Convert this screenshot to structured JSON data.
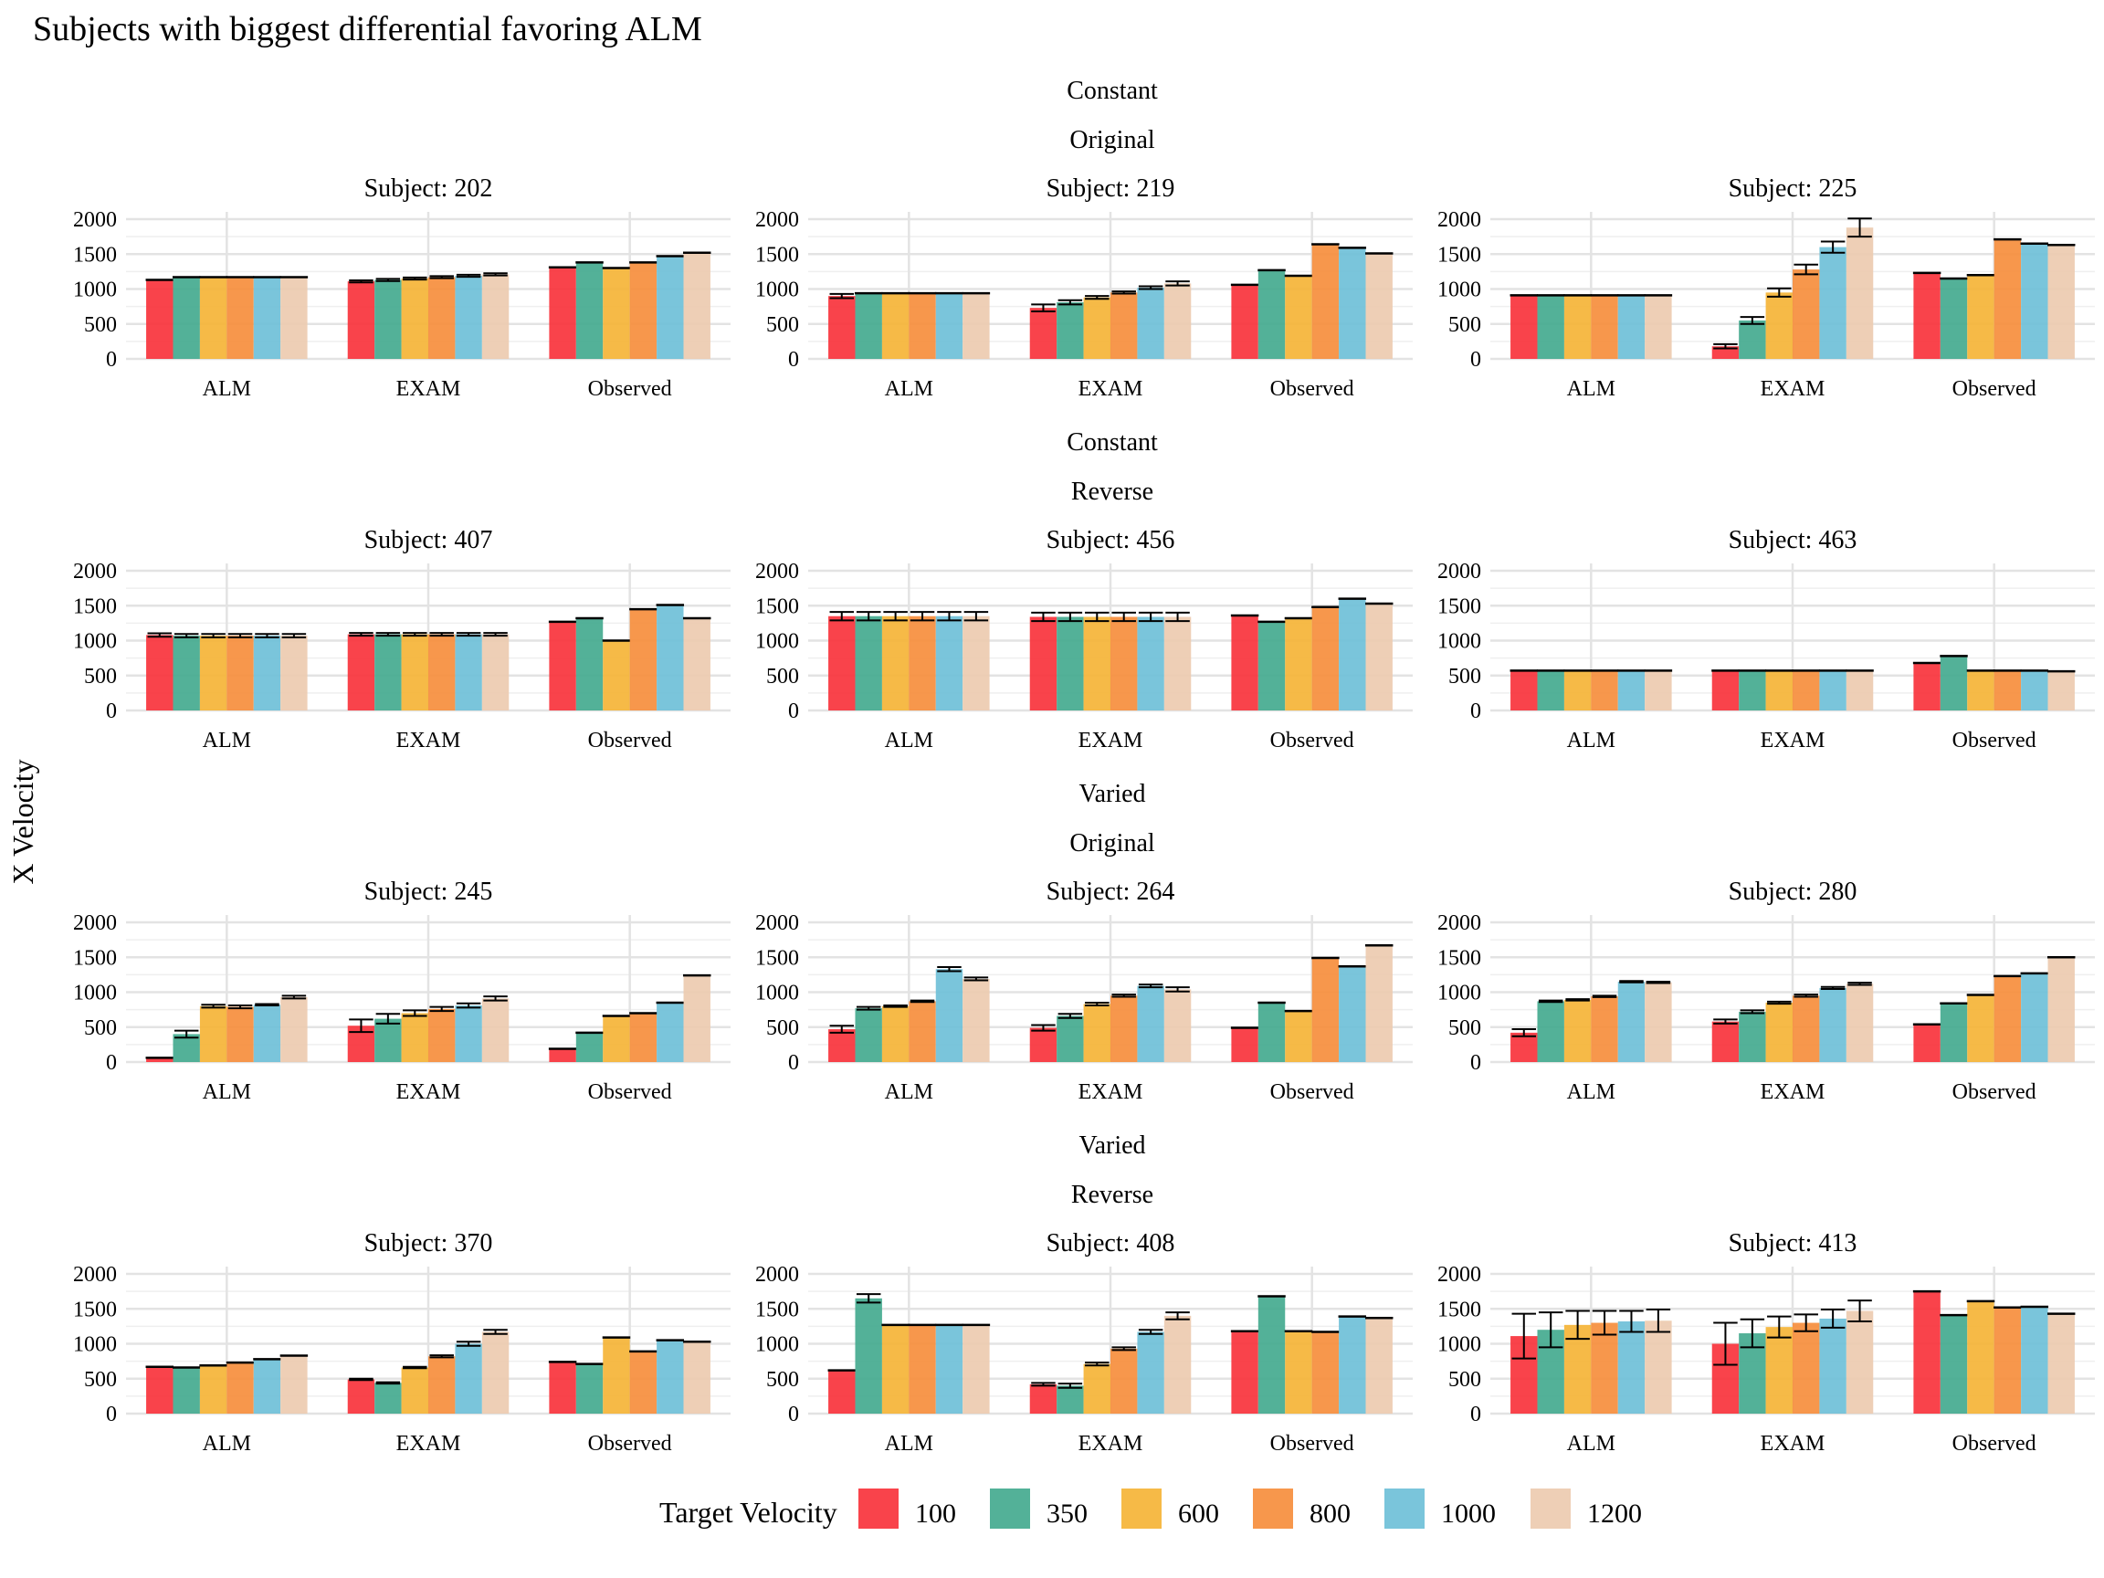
{
  "title": "Subjects with biggest differential favoring ALM",
  "ylabel": "X Velocity",
  "legend": {
    "title": "Target Velocity",
    "items": [
      {
        "label": "100",
        "color": "#F8333C"
      },
      {
        "label": "350",
        "color": "#44AA8F"
      },
      {
        "label": "600",
        "color": "#F5B437"
      },
      {
        "label": "800",
        "color": "#F68E3D"
      },
      {
        "label": "1000",
        "color": "#6FC0D8"
      },
      {
        "label": "1200",
        "color": "#EDCBB0"
      }
    ]
  },
  "groups": [
    {
      "line1": "Constant",
      "line2": "Original"
    },
    {
      "line1": "Constant",
      "line2": "Reverse"
    },
    {
      "line1": "Varied",
      "line2": "Original"
    },
    {
      "line1": "Varied",
      "line2": "Reverse"
    }
  ],
  "chart_data": {
    "type": "bar",
    "categories": [
      "ALM",
      "EXAM",
      "Observed"
    ],
    "series_names": [
      "100",
      "350",
      "600",
      "800",
      "1000",
      "1200"
    ],
    "ylim": [
      0,
      2000
    ],
    "yticks": [
      "0",
      "500",
      "1000",
      "1500",
      "2000"
    ],
    "panels": [
      {
        "label": "Subject: 202",
        "values": [
          [
            1130,
            1170,
            1170,
            1170,
            1170,
            1170
          ],
          [
            1110,
            1130,
            1150,
            1170,
            1190,
            1210
          ],
          [
            1310,
            1380,
            1300,
            1380,
            1470,
            1520
          ]
        ],
        "errors": [
          [
            0,
            0,
            0,
            0,
            0,
            0
          ],
          [
            15,
            15,
            15,
            15,
            15,
            15
          ],
          [
            0,
            0,
            0,
            0,
            0,
            0
          ]
        ]
      },
      {
        "label": "Subject: 219",
        "values": [
          [
            900,
            940,
            940,
            940,
            940,
            940
          ],
          [
            730,
            810,
            880,
            950,
            1020,
            1080
          ],
          [
            1060,
            1270,
            1190,
            1640,
            1590,
            1510
          ]
        ],
        "errors": [
          [
            30,
            0,
            0,
            0,
            0,
            0
          ],
          [
            50,
            30,
            20,
            15,
            20,
            30
          ],
          [
            0,
            0,
            0,
            0,
            0,
            0
          ]
        ]
      },
      {
        "label": "Subject: 225",
        "values": [
          [
            910,
            910,
            910,
            910,
            910,
            910
          ],
          [
            180,
            550,
            950,
            1280,
            1600,
            1880
          ],
          [
            1230,
            1150,
            1200,
            1710,
            1650,
            1630
          ]
        ],
        "errors": [
          [
            0,
            0,
            0,
            0,
            0,
            0
          ],
          [
            30,
            50,
            60,
            70,
            80,
            130
          ],
          [
            0,
            0,
            0,
            0,
            0,
            0
          ]
        ]
      },
      {
        "label": "Subject: 407",
        "values": [
          [
            1080,
            1070,
            1070,
            1070,
            1070,
            1070
          ],
          [
            1090,
            1090,
            1090,
            1090,
            1090,
            1090
          ],
          [
            1270,
            1320,
            1000,
            1450,
            1510,
            1320
          ]
        ],
        "errors": [
          [
            25,
            25,
            25,
            25,
            25,
            25
          ],
          [
            20,
            20,
            20,
            20,
            20,
            20
          ],
          [
            0,
            0,
            0,
            0,
            0,
            0
          ]
        ]
      },
      {
        "label": "Subject: 456",
        "values": [
          [
            1350,
            1350,
            1350,
            1350,
            1350,
            1350
          ],
          [
            1340,
            1340,
            1340,
            1340,
            1340,
            1340
          ],
          [
            1360,
            1270,
            1320,
            1480,
            1600,
            1530
          ]
        ],
        "errors": [
          [
            60,
            60,
            60,
            60,
            60,
            60
          ],
          [
            60,
            60,
            60,
            60,
            60,
            60
          ],
          [
            0,
            0,
            0,
            0,
            0,
            0
          ]
        ]
      },
      {
        "label": "Subject: 463",
        "values": [
          [
            570,
            570,
            570,
            570,
            570,
            570
          ],
          [
            570,
            570,
            570,
            570,
            570,
            570
          ],
          [
            680,
            780,
            570,
            570,
            570,
            560
          ]
        ],
        "errors": [
          [
            0,
            0,
            0,
            0,
            0,
            0
          ],
          [
            0,
            0,
            0,
            0,
            0,
            0
          ],
          [
            0,
            0,
            0,
            0,
            0,
            0
          ]
        ]
      },
      {
        "label": "Subject: 245",
        "values": [
          [
            60,
            400,
            800,
            790,
            820,
            930
          ],
          [
            520,
            620,
            700,
            760,
            810,
            910
          ],
          [
            190,
            420,
            660,
            700,
            850,
            1240
          ]
        ],
        "errors": [
          [
            0,
            50,
            20,
            20,
            10,
            20
          ],
          [
            90,
            70,
            40,
            30,
            30,
            30
          ],
          [
            0,
            0,
            0,
            0,
            0,
            0
          ]
        ]
      },
      {
        "label": "Subject: 264",
        "values": [
          [
            470,
            770,
            800,
            870,
            1330,
            1190
          ],
          [
            490,
            660,
            830,
            950,
            1090,
            1040
          ],
          [
            490,
            850,
            730,
            1490,
            1370,
            1670
          ]
        ],
        "errors": [
          [
            50,
            20,
            10,
            10,
            30,
            20
          ],
          [
            40,
            30,
            20,
            15,
            20,
            30
          ],
          [
            0,
            0,
            0,
            0,
            0,
            0
          ]
        ]
      },
      {
        "label": "Subject: 280",
        "values": [
          [
            420,
            870,
            890,
            940,
            1150,
            1140
          ],
          [
            580,
            720,
            850,
            950,
            1060,
            1120
          ],
          [
            540,
            840,
            960,
            1230,
            1270,
            1500
          ]
        ],
        "errors": [
          [
            50,
            10,
            10,
            10,
            10,
            10
          ],
          [
            30,
            20,
            15,
            15,
            15,
            15
          ],
          [
            0,
            0,
            0,
            0,
            0,
            0
          ]
        ]
      },
      {
        "label": "Subject: 370",
        "values": [
          [
            670,
            660,
            690,
            730,
            780,
            830
          ],
          [
            490,
            440,
            660,
            820,
            1000,
            1170
          ],
          [
            740,
            710,
            1090,
            890,
            1050,
            1030
          ]
        ],
        "errors": [
          [
            0,
            0,
            0,
            0,
            0,
            0
          ],
          [
            10,
            10,
            10,
            15,
            30,
            30
          ],
          [
            0,
            0,
            0,
            0,
            0,
            0
          ]
        ]
      },
      {
        "label": "Subject: 408",
        "values": [
          [
            620,
            1650,
            1270,
            1270,
            1270,
            1270
          ],
          [
            420,
            400,
            710,
            930,
            1170,
            1400
          ],
          [
            1180,
            1680,
            1180,
            1170,
            1390,
            1370
          ]
        ],
        "errors": [
          [
            0,
            60,
            0,
            0,
            0,
            0
          ],
          [
            20,
            30,
            20,
            20,
            30,
            50
          ],
          [
            0,
            0,
            0,
            0,
            0,
            0
          ]
        ]
      },
      {
        "label": "Subject: 413",
        "values": [
          [
            1110,
            1200,
            1270,
            1300,
            1320,
            1330
          ],
          [
            1000,
            1150,
            1240,
            1300,
            1360,
            1470
          ],
          [
            1750,
            1410,
            1610,
            1520,
            1530,
            1430
          ]
        ],
        "errors": [
          [
            320,
            250,
            200,
            170,
            150,
            160
          ],
          [
            300,
            200,
            150,
            120,
            130,
            150
          ],
          [
            0,
            0,
            0,
            0,
            0,
            0
          ]
        ]
      }
    ]
  }
}
